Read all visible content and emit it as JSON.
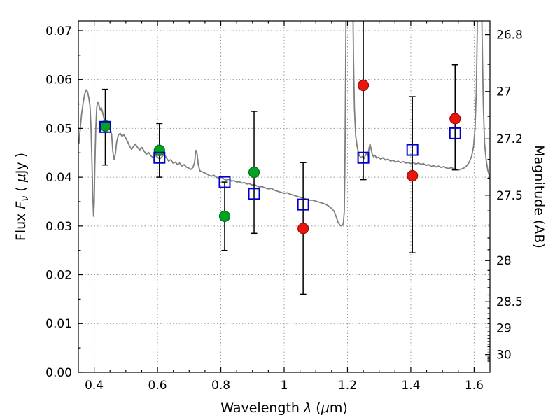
{
  "chart_data": {
    "type": "scatter",
    "description": "Spectral energy distribution: gray model spectrum, green/red observed photometry with black error bars, blue open-square model photometry",
    "xlabel_segments": [
      {
        "t": "Wavelength  "
      },
      {
        "t": "λ",
        "i": true
      },
      {
        "t": " ("
      },
      {
        "t": "μ",
        "i": true
      },
      {
        "t": "m)"
      }
    ],
    "ylabel_segments": [
      {
        "t": "Flux  "
      },
      {
        "t": "F",
        "i": true
      },
      {
        "t": "ν",
        "i": true,
        "sub": true
      },
      {
        "t": "  ( ",
        "rise": true
      },
      {
        "t": "μ",
        "i": true
      },
      {
        "t": "Jy )"
      }
    ],
    "y2label_segments": [
      {
        "t": "Magnitude (AB)"
      }
    ],
    "xlim": [
      0.35,
      1.65
    ],
    "ylim": [
      0,
      0.072
    ],
    "x_major_ticks": [
      0.4,
      0.6,
      0.8,
      1.0,
      1.2,
      1.4,
      1.6
    ],
    "x_tick_labels": [
      "0.4",
      "0.6",
      "0.8",
      "1",
      "1.2",
      "1.4",
      "1.6"
    ],
    "x_minor_step": 0.05,
    "y_major_ticks": [
      0,
      0.01,
      0.02,
      0.03,
      0.04,
      0.05,
      0.06,
      0.07
    ],
    "y_tick_labels": [
      "0.00",
      "0.01",
      "0.02",
      "0.03",
      "0.04",
      "0.05",
      "0.06",
      "0.07"
    ],
    "y_minor_step": 0.005,
    "ab_zeropoint": 23.9,
    "mag_major_ticks": [
      26.8,
      27,
      27.2,
      27.5,
      28,
      28.5,
      29,
      30
    ],
    "mag_tick_labels": [
      "26.8",
      "27",
      "27.2",
      "27.5",
      "28",
      "28.5",
      "29",
      "30"
    ],
    "mag_minor_ticks": [
      26.9,
      27.1,
      27.3,
      27.4,
      27.6,
      27.7,
      27.8,
      27.9,
      28.1,
      28.2,
      28.3,
      28.4,
      28.6,
      28.7,
      28.8,
      28.9,
      29.1,
      29.2,
      29.3,
      29.4,
      29.5,
      29.6,
      29.7,
      29.8,
      29.9,
      30.1,
      30.2,
      30.3,
      30.4,
      30.5
    ],
    "grid": {
      "color": "#999999",
      "style": "dotted"
    },
    "errorbar_color": "#000000",
    "observed_green": {
      "color": "#00a321",
      "edge": "#0d6e14",
      "points": [
        {
          "x": 0.435,
          "y": 0.0505,
          "lo": 0.0425,
          "hi": 0.058
        },
        {
          "x": 0.606,
          "y": 0.0455,
          "lo": 0.04,
          "hi": 0.051
        },
        {
          "x": 0.812,
          "y": 0.032,
          "lo": 0.025,
          "hi": 0.039
        },
        {
          "x": 0.905,
          "y": 0.041,
          "lo": 0.0285,
          "hi": 0.0535
        }
      ]
    },
    "observed_red": {
      "color": "#e8160c",
      "edge": "#9a0d06",
      "points": [
        {
          "x": 1.06,
          "y": 0.0295,
          "lo": 0.016,
          "hi": 0.043
        },
        {
          "x": 1.25,
          "y": 0.0588,
          "lo": 0.0395,
          "hi": 0.079
        },
        {
          "x": 1.405,
          "y": 0.0403,
          "lo": 0.0245,
          "hi": 0.0565
        },
        {
          "x": 1.54,
          "y": 0.052,
          "lo": 0.0415,
          "hi": 0.063
        }
      ]
    },
    "model_squares": {
      "color": "#0000cd",
      "points": [
        {
          "x": 0.435,
          "y": 0.0503
        },
        {
          "x": 0.606,
          "y": 0.044
        },
        {
          "x": 0.812,
          "y": 0.039
        },
        {
          "x": 0.905,
          "y": 0.0366
        },
        {
          "x": 1.06,
          "y": 0.0344
        },
        {
          "x": 1.25,
          "y": 0.044
        },
        {
          "x": 1.405,
          "y": 0.0456
        },
        {
          "x": 1.54,
          "y": 0.049
        }
      ]
    },
    "spectrum": {
      "color": "#7f7f7f",
      "width": 1.8,
      "points": [
        [
          0.352,
          0.047
        ],
        [
          0.356,
          0.05
        ],
        [
          0.36,
          0.0528
        ],
        [
          0.365,
          0.0552
        ],
        [
          0.37,
          0.057
        ],
        [
          0.375,
          0.0579
        ],
        [
          0.379,
          0.0575
        ],
        [
          0.383,
          0.0563
        ],
        [
          0.387,
          0.0545
        ],
        [
          0.39,
          0.05
        ],
        [
          0.393,
          0.043
        ],
        [
          0.396,
          0.0355
        ],
        [
          0.398,
          0.032
        ],
        [
          0.4,
          0.0345
        ],
        [
          0.402,
          0.042
        ],
        [
          0.405,
          0.05
        ],
        [
          0.408,
          0.0542
        ],
        [
          0.411,
          0.0554
        ],
        [
          0.415,
          0.0548
        ],
        [
          0.419,
          0.0538
        ],
        [
          0.423,
          0.0542
        ],
        [
          0.427,
          0.0532
        ],
        [
          0.431,
          0.052
        ],
        [
          0.435,
          0.0512
        ],
        [
          0.439,
          0.0516
        ],
        [
          0.443,
          0.0508
        ],
        [
          0.447,
          0.0502
        ],
        [
          0.451,
          0.0498
        ],
        [
          0.455,
          0.0488
        ],
        [
          0.459,
          0.0452
        ],
        [
          0.463,
          0.0436
        ],
        [
          0.467,
          0.0448
        ],
        [
          0.471,
          0.0472
        ],
        [
          0.476,
          0.0486
        ],
        [
          0.482,
          0.049
        ],
        [
          0.488,
          0.0484
        ],
        [
          0.494,
          0.0487
        ],
        [
          0.5,
          0.048
        ],
        [
          0.506,
          0.0472
        ],
        [
          0.512,
          0.0463
        ],
        [
          0.518,
          0.0457
        ],
        [
          0.524,
          0.0463
        ],
        [
          0.53,
          0.0468
        ],
        [
          0.537,
          0.0461
        ],
        [
          0.544,
          0.0456
        ],
        [
          0.551,
          0.0461
        ],
        [
          0.558,
          0.0453
        ],
        [
          0.565,
          0.0447
        ],
        [
          0.572,
          0.0451
        ],
        [
          0.579,
          0.0444
        ],
        [
          0.586,
          0.044
        ],
        [
          0.593,
          0.0445
        ],
        [
          0.6,
          0.0441
        ],
        [
          0.607,
          0.0437
        ],
        [
          0.614,
          0.0442
        ],
        [
          0.621,
          0.0447
        ],
        [
          0.628,
          0.044
        ],
        [
          0.635,
          0.0433
        ],
        [
          0.642,
          0.0436
        ],
        [
          0.649,
          0.0429
        ],
        [
          0.656,
          0.0431
        ],
        [
          0.663,
          0.0426
        ],
        [
          0.67,
          0.0429
        ],
        [
          0.677,
          0.0423
        ],
        [
          0.684,
          0.0426
        ],
        [
          0.691,
          0.0421
        ],
        [
          0.698,
          0.0419
        ],
        [
          0.705,
          0.0416
        ],
        [
          0.712,
          0.042
        ],
        [
          0.717,
          0.043
        ],
        [
          0.721,
          0.0455
        ],
        [
          0.725,
          0.0448
        ],
        [
          0.729,
          0.0425
        ],
        [
          0.734,
          0.0413
        ],
        [
          0.741,
          0.0411
        ],
        [
          0.748,
          0.0409
        ],
        [
          0.755,
          0.0407
        ],
        [
          0.762,
          0.0404
        ],
        [
          0.77,
          0.0402
        ],
        [
          0.778,
          0.0404
        ],
        [
          0.786,
          0.04
        ],
        [
          0.794,
          0.0398
        ],
        [
          0.802,
          0.04
        ],
        [
          0.81,
          0.0396
        ],
        [
          0.818,
          0.0394
        ],
        [
          0.826,
          0.0396
        ],
        [
          0.834,
          0.0392
        ],
        [
          0.842,
          0.0393
        ],
        [
          0.85,
          0.039
        ],
        [
          0.858,
          0.0391
        ],
        [
          0.866,
          0.0388
        ],
        [
          0.874,
          0.0389
        ],
        [
          0.882,
          0.0386
        ],
        [
          0.89,
          0.0387
        ],
        [
          0.898,
          0.0384
        ],
        [
          0.906,
          0.0385
        ],
        [
          0.914,
          0.0382
        ],
        [
          0.922,
          0.038
        ],
        [
          0.93,
          0.0381
        ],
        [
          0.94,
          0.0378
        ],
        [
          0.95,
          0.0376
        ],
        [
          0.96,
          0.0377
        ],
        [
          0.97,
          0.0373
        ],
        [
          0.98,
          0.0371
        ],
        [
          0.99,
          0.0369
        ],
        [
          1.0,
          0.0367
        ],
        [
          1.01,
          0.0368
        ],
        [
          1.02,
          0.0365
        ],
        [
          1.03,
          0.0363
        ],
        [
          1.04,
          0.0361
        ],
        [
          1.05,
          0.0359
        ],
        [
          1.06,
          0.0357
        ],
        [
          1.07,
          0.0355
        ],
        [
          1.08,
          0.0353
        ],
        [
          1.09,
          0.0353
        ],
        [
          1.1,
          0.0351
        ],
        [
          1.11,
          0.0349
        ],
        [
          1.12,
          0.0347
        ],
        [
          1.13,
          0.0345
        ],
        [
          1.14,
          0.0341
        ],
        [
          1.15,
          0.0336
        ],
        [
          1.158,
          0.033
        ],
        [
          1.165,
          0.0318
        ],
        [
          1.17,
          0.0308
        ],
        [
          1.176,
          0.0302
        ],
        [
          1.182,
          0.03
        ],
        [
          1.187,
          0.0305
        ],
        [
          1.19,
          0.033
        ],
        [
          1.192,
          0.042
        ],
        [
          1.194,
          0.06
        ],
        [
          1.196,
          0.08
        ],
        [
          1.2,
          0.096
        ],
        [
          1.212,
          0.098
        ],
        [
          1.216,
          0.082
        ],
        [
          1.219,
          0.064
        ],
        [
          1.222,
          0.054
        ],
        [
          1.226,
          0.0485
        ],
        [
          1.23,
          0.0465
        ],
        [
          1.234,
          0.0452
        ],
        [
          1.238,
          0.0444
        ],
        [
          1.243,
          0.044
        ],
        [
          1.248,
          0.0443
        ],
        [
          1.252,
          0.0438
        ],
        [
          1.256,
          0.0444
        ],
        [
          1.26,
          0.045
        ],
        [
          1.264,
          0.0444
        ],
        [
          1.268,
          0.0458
        ],
        [
          1.271,
          0.0468
        ],
        [
          1.274,
          0.046
        ],
        [
          1.278,
          0.0448
        ],
        [
          1.282,
          0.0442
        ],
        [
          1.287,
          0.0445
        ],
        [
          1.292,
          0.0439
        ],
        [
          1.298,
          0.0441
        ],
        [
          1.305,
          0.0437
        ],
        [
          1.312,
          0.044
        ],
        [
          1.32,
          0.0435
        ],
        [
          1.328,
          0.0437
        ],
        [
          1.336,
          0.0433
        ],
        [
          1.344,
          0.0435
        ],
        [
          1.352,
          0.0431
        ],
        [
          1.36,
          0.0433
        ],
        [
          1.368,
          0.043
        ],
        [
          1.376,
          0.0432
        ],
        [
          1.384,
          0.0429
        ],
        [
          1.392,
          0.043
        ],
        [
          1.4,
          0.0428
        ],
        [
          1.408,
          0.043
        ],
        [
          1.416,
          0.0427
        ],
        [
          1.424,
          0.0429
        ],
        [
          1.432,
          0.0426
        ],
        [
          1.44,
          0.0428
        ],
        [
          1.448,
          0.0424
        ],
        [
          1.456,
          0.0426
        ],
        [
          1.464,
          0.0422
        ],
        [
          1.472,
          0.0424
        ],
        [
          1.48,
          0.0421
        ],
        [
          1.488,
          0.0423
        ],
        [
          1.496,
          0.042
        ],
        [
          1.504,
          0.0422
        ],
        [
          1.512,
          0.0419
        ],
        [
          1.52,
          0.0418
        ],
        [
          1.528,
          0.042
        ],
        [
          1.536,
          0.0417
        ],
        [
          1.544,
          0.0416
        ],
        [
          1.552,
          0.0415
        ],
        [
          1.56,
          0.0417
        ],
        [
          1.568,
          0.0419
        ],
        [
          1.576,
          0.0423
        ],
        [
          1.584,
          0.043
        ],
        [
          1.592,
          0.0443
        ],
        [
          1.598,
          0.0462
        ],
        [
          1.603,
          0.05
        ],
        [
          1.607,
          0.058
        ],
        [
          1.61,
          0.07
        ],
        [
          1.613,
          0.085
        ],
        [
          1.617,
          0.096
        ],
        [
          1.621,
          0.09
        ],
        [
          1.625,
          0.07
        ],
        [
          1.629,
          0.055
        ],
        [
          1.633,
          0.047
        ],
        [
          1.638,
          0.0435
        ],
        [
          1.643,
          0.0415
        ],
        [
          1.648,
          0.0403
        ],
        [
          1.65,
          0.04
        ]
      ]
    }
  }
}
